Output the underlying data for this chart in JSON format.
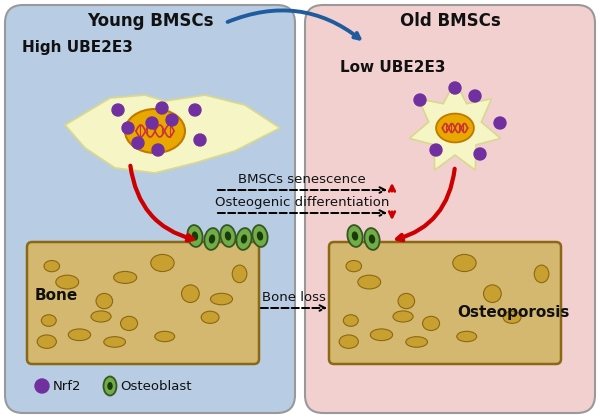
{
  "bg_left_color": "#b8cce4",
  "bg_right_color": "#f2d0d0",
  "bg_border_color": "#999999",
  "cell_body_color": "#f5f5c5",
  "cell_edge_color": "#d8d890",
  "nucleus_color": "#e8a800",
  "nucleus_edge_color": "#c07800",
  "dna_color": "#cc3333",
  "nrf2_color": "#7030a0",
  "osteoblast_fill": "#70ad47",
  "osteoblast_border": "#375623",
  "osteoblast_nucleus": "#1a3a0a",
  "bone_fill": "#d4b870",
  "bone_edge": "#8b6914",
  "bone_lacuna_fill": "#c8a030",
  "bone_lacuna_edge": "#8b6914",
  "arrow_red": "#cc0000",
  "arrow_blue": "#1f5c9e",
  "text_dark": "#111111",
  "title_left": "Young BMSCs",
  "title_right": "Old BMSCs",
  "label_high": "High UBE2E3",
  "label_low": "Low UBE2E3",
  "label_bone": "Bone",
  "label_osteoporosis": "Osteoporosis",
  "label_bone_loss": "Bone loss",
  "label_senescence": "BMSCs senescence",
  "label_osteogenic": "Osteogenic differentiation",
  "legend_nrf2": "Nrf2",
  "legend_osteoblast": "Osteoblast",
  "figw": 6.0,
  "figh": 4.18,
  "dpi": 100
}
